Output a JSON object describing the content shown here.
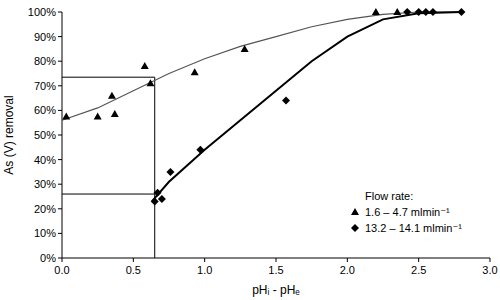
{
  "chart_data": {
    "type": "scatter",
    "x_label": "pHᵢ - pHₑ",
    "y_label": "As (V) removal",
    "legend_title": "Flow rate:",
    "legend": "lower right",
    "grid": false,
    "xlim": [
      0,
      3
    ],
    "ylim": [
      0,
      100
    ],
    "xticks": [
      {
        "value": 0,
        "label": "0.0"
      },
      {
        "value": 0.5,
        "label": "0.5"
      },
      {
        "value": 1,
        "label": "1.0"
      },
      {
        "value": 1.5,
        "label": "1.5"
      },
      {
        "value": 2,
        "label": "2.0"
      },
      {
        "value": 2.5,
        "label": "2.5"
      },
      {
        "value": 3,
        "label": "3.0"
      }
    ],
    "yticks": [
      {
        "value": 0,
        "label": "0%"
      },
      {
        "value": 10,
        "label": "10%"
      },
      {
        "value": 20,
        "label": "20%"
      },
      {
        "value": 30,
        "label": "30%"
      },
      {
        "value": 40,
        "label": "40%"
      },
      {
        "value": 50,
        "label": "50%"
      },
      {
        "value": 60,
        "label": "60%"
      },
      {
        "value": 70,
        "label": "70%"
      },
      {
        "value": 80,
        "label": "80%"
      },
      {
        "value": 90,
        "label": "90%"
      },
      {
        "value": 100,
        "label": "100%"
      }
    ],
    "reference_x": 0.65,
    "reference_y": [
      73.5,
      26
    ],
    "series": [
      {
        "name": "1.6 – 4.7 mlmin⁻¹",
        "type": "scatter",
        "marker": "triangle",
        "color": "#000000",
        "x": [
          0.03,
          0.25,
          0.35,
          0.37,
          0.58,
          0.62,
          0.93,
          1.28,
          2.2,
          2.35
        ],
        "values": [
          57.5,
          57.5,
          66,
          58.5,
          78,
          71,
          75.5,
          85,
          100,
          100
        ]
      },
      {
        "name": "13.2 – 14.1 mlmin⁻¹",
        "type": "scatter",
        "marker": "diamond",
        "color": "#000000",
        "x": [
          0.65,
          0.67,
          0.7,
          0.76,
          0.97,
          1.57,
          2.42,
          2.5,
          2.55,
          2.6,
          2.8
        ],
        "values": [
          23,
          26.5,
          24,
          35,
          44,
          64,
          100,
          100,
          100,
          100,
          100
        ]
      },
      {
        "type": "line",
        "marker": "none",
        "line_style": "solid",
        "color": "#555555",
        "x": [
          0,
          0.25,
          0.5,
          0.75,
          1,
          1.25,
          1.5,
          1.75,
          2,
          2.25,
          2.5,
          2.8
        ],
        "values": [
          56,
          61,
          68,
          75,
          81,
          86,
          90,
          94,
          97,
          99,
          100,
          100
        ]
      },
      {
        "type": "line",
        "marker": "none",
        "line_style": "solid",
        "color": "#000000",
        "x": [
          0.63,
          0.75,
          1,
          1.25,
          1.5,
          1.75,
          2,
          2.25,
          2.5,
          2.8
        ],
        "values": [
          23,
          31,
          44,
          56,
          68,
          80,
          90,
          97,
          99.5,
          100
        ]
      }
    ]
  }
}
